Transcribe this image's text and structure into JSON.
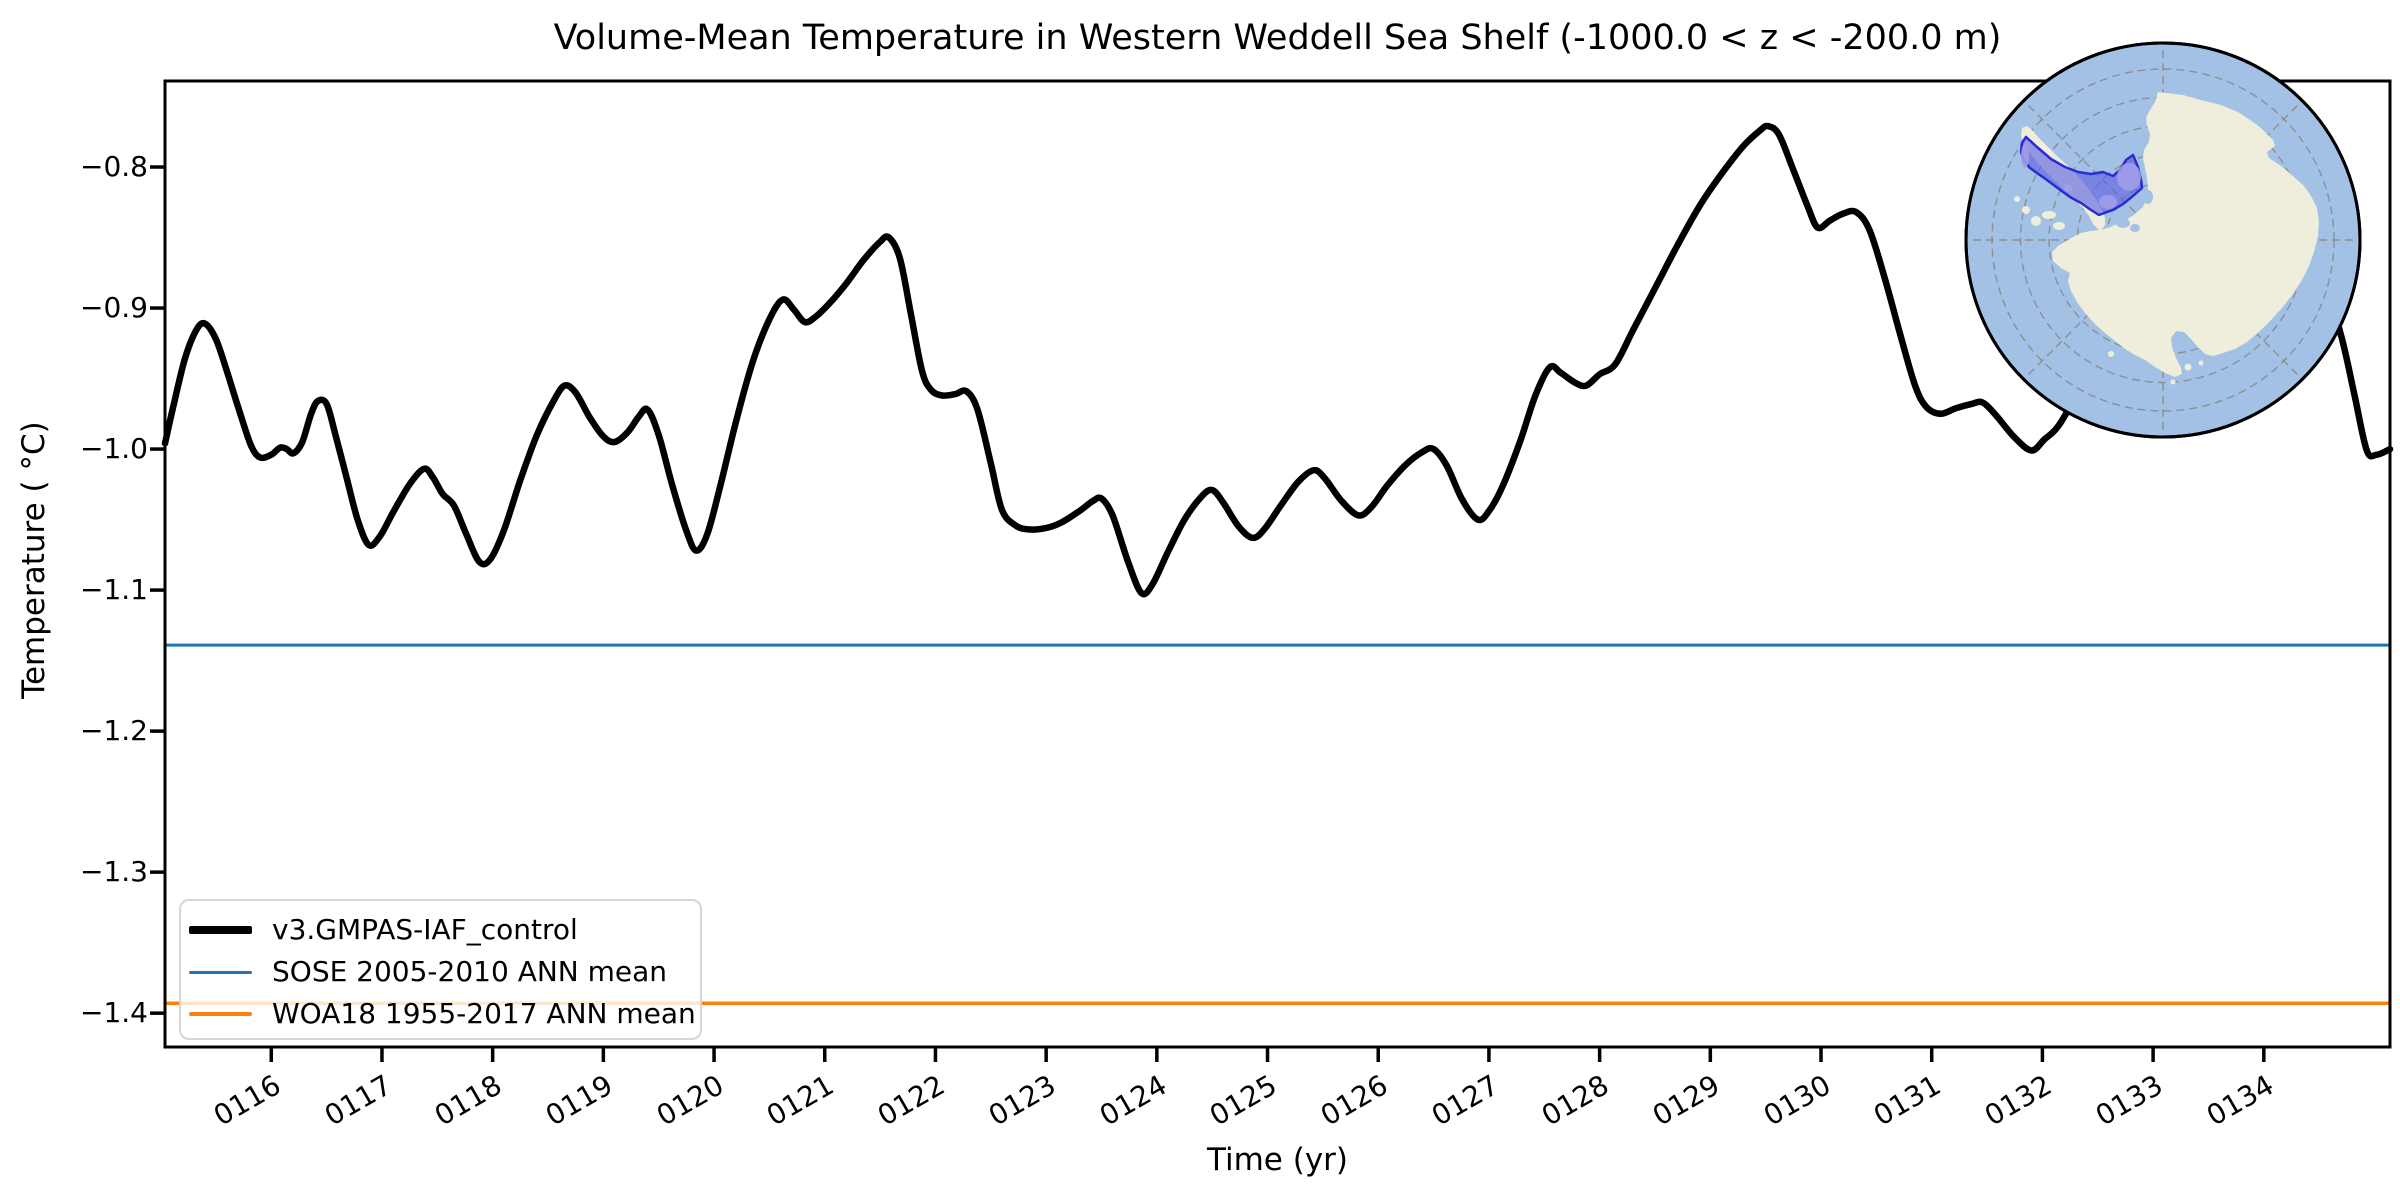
{
  "title": "Volume-Mean Temperature in Western Weddell Sea Shelf (-1000.0 < z < -200.0 m)",
  "legend": {
    "items": [
      {
        "label": "v3.GMPAS-IAF_control",
        "color": "#000000",
        "linewidth": 8
      },
      {
        "label": "SOSE 2005-2010 ANN mean",
        "color": "#1f77b4",
        "linewidth": 3
      },
      {
        "label": "WOA18 1955-2017 ANN mean",
        "color": "#ff7f0e",
        "linewidth": 4
      }
    ]
  },
  "chart_data": {
    "type": "line",
    "title": "Volume-Mean Temperature in Western Weddell Sea Shelf (-1000.0 < z < -200.0 m)",
    "xlabel": "Time (yr)",
    "ylabel": "Temperature ( °C)",
    "xlim": [
      115.04,
      135.14
    ],
    "ylim": [
      -1.424,
      -0.739
    ],
    "grid": false,
    "legend_position": "lower left",
    "x_ticks": {
      "years": [
        116,
        117,
        118,
        119,
        120,
        121,
        122,
        123,
        124,
        125,
        126,
        127,
        128,
        129,
        130,
        131,
        132,
        133,
        134
      ],
      "labels": [
        "0116",
        "0117",
        "0118",
        "0119",
        "0120",
        "0121",
        "0122",
        "0123",
        "0124",
        "0125",
        "0126",
        "0127",
        "0128",
        "0129",
        "0130",
        "0131",
        "0132",
        "0133",
        "0134"
      ],
      "rotation_deg": 30
    },
    "y_ticks": {
      "values": [
        -0.8,
        -0.9,
        -1.0,
        -1.1,
        -1.2,
        -1.3,
        -1.4
      ],
      "labels": [
        "−0.8",
        "−0.9",
        "−1.0",
        "−1.1",
        "−1.2",
        "−1.3",
        "−1.4"
      ]
    },
    "series": [
      {
        "name": "v3.GMPAS-IAF_control",
        "color": "#000000",
        "linewidth": 6.5,
        "points": [
          [
            115.04,
            -0.996
          ],
          [
            115.12,
            -0.968
          ],
          [
            115.22,
            -0.936
          ],
          [
            115.32,
            -0.916
          ],
          [
            115.4,
            -0.911
          ],
          [
            115.5,
            -0.922
          ],
          [
            115.6,
            -0.945
          ],
          [
            115.72,
            -0.975
          ],
          [
            115.82,
            -0.998
          ],
          [
            115.9,
            -1.006
          ],
          [
            116.0,
            -1.004
          ],
          [
            116.08,
            -0.999
          ],
          [
            116.14,
            -1.0
          ],
          [
            116.2,
            -1.003
          ],
          [
            116.28,
            -0.995
          ],
          [
            116.36,
            -0.975
          ],
          [
            116.42,
            -0.966
          ],
          [
            116.5,
            -0.968
          ],
          [
            116.58,
            -0.99
          ],
          [
            116.68,
            -1.02
          ],
          [
            116.78,
            -1.05
          ],
          [
            116.88,
            -1.068
          ],
          [
            116.98,
            -1.062
          ],
          [
            117.1,
            -1.045
          ],
          [
            117.25,
            -1.025
          ],
          [
            117.38,
            -1.014
          ],
          [
            117.46,
            -1.02
          ],
          [
            117.55,
            -1.032
          ],
          [
            117.65,
            -1.04
          ],
          [
            117.76,
            -1.06
          ],
          [
            117.88,
            -1.08
          ],
          [
            117.98,
            -1.078
          ],
          [
            118.1,
            -1.058
          ],
          [
            118.25,
            -1.022
          ],
          [
            118.4,
            -0.99
          ],
          [
            118.55,
            -0.966
          ],
          [
            118.65,
            -0.955
          ],
          [
            118.75,
            -0.96
          ],
          [
            118.88,
            -0.978
          ],
          [
            119.0,
            -0.991
          ],
          [
            119.1,
            -0.995
          ],
          [
            119.22,
            -0.988
          ],
          [
            119.32,
            -0.977
          ],
          [
            119.4,
            -0.972
          ],
          [
            119.5,
            -0.99
          ],
          [
            119.62,
            -1.025
          ],
          [
            119.75,
            -1.058
          ],
          [
            119.84,
            -1.072
          ],
          [
            119.94,
            -1.06
          ],
          [
            120.06,
            -1.025
          ],
          [
            120.2,
            -0.98
          ],
          [
            120.35,
            -0.938
          ],
          [
            120.5,
            -0.908
          ],
          [
            120.62,
            -0.894
          ],
          [
            120.72,
            -0.901
          ],
          [
            120.82,
            -0.91
          ],
          [
            120.92,
            -0.906
          ],
          [
            121.05,
            -0.896
          ],
          [
            121.2,
            -0.882
          ],
          [
            121.35,
            -0.866
          ],
          [
            121.5,
            -0.853
          ],
          [
            121.58,
            -0.85
          ],
          [
            121.68,
            -0.865
          ],
          [
            121.78,
            -0.905
          ],
          [
            121.88,
            -0.945
          ],
          [
            121.96,
            -0.958
          ],
          [
            122.06,
            -0.962
          ],
          [
            122.18,
            -0.961
          ],
          [
            122.28,
            -0.959
          ],
          [
            122.38,
            -0.972
          ],
          [
            122.5,
            -1.01
          ],
          [
            122.6,
            -1.043
          ],
          [
            122.72,
            -1.054
          ],
          [
            122.84,
            -1.057
          ],
          [
            123.0,
            -1.056
          ],
          [
            123.14,
            -1.052
          ],
          [
            123.3,
            -1.044
          ],
          [
            123.42,
            -1.037
          ],
          [
            123.5,
            -1.035
          ],
          [
            123.6,
            -1.047
          ],
          [
            123.74,
            -1.08
          ],
          [
            123.86,
            -1.102
          ],
          [
            123.96,
            -1.096
          ],
          [
            124.1,
            -1.073
          ],
          [
            124.25,
            -1.05
          ],
          [
            124.4,
            -1.034
          ],
          [
            124.5,
            -1.029
          ],
          [
            124.6,
            -1.038
          ],
          [
            124.74,
            -1.055
          ],
          [
            124.87,
            -1.063
          ],
          [
            124.98,
            -1.056
          ],
          [
            125.12,
            -1.04
          ],
          [
            125.28,
            -1.023
          ],
          [
            125.42,
            -1.015
          ],
          [
            125.52,
            -1.021
          ],
          [
            125.66,
            -1.036
          ],
          [
            125.82,
            -1.047
          ],
          [
            125.94,
            -1.041
          ],
          [
            126.08,
            -1.026
          ],
          [
            126.25,
            -1.011
          ],
          [
            126.4,
            -1.002
          ],
          [
            126.5,
            -1.0
          ],
          [
            126.62,
            -1.012
          ],
          [
            126.76,
            -1.036
          ],
          [
            126.9,
            -1.05
          ],
          [
            127.0,
            -1.044
          ],
          [
            127.12,
            -1.027
          ],
          [
            127.28,
            -0.995
          ],
          [
            127.42,
            -0.962
          ],
          [
            127.55,
            -0.942
          ],
          [
            127.65,
            -0.946
          ],
          [
            127.78,
            -0.953
          ],
          [
            127.88,
            -0.955
          ],
          [
            128.0,
            -0.947
          ],
          [
            128.14,
            -0.94
          ],
          [
            128.3,
            -0.916
          ],
          [
            128.5,
            -0.886
          ],
          [
            128.7,
            -0.856
          ],
          [
            128.9,
            -0.828
          ],
          [
            129.1,
            -0.805
          ],
          [
            129.3,
            -0.785
          ],
          [
            129.45,
            -0.774
          ],
          [
            129.52,
            -0.771
          ],
          [
            129.62,
            -0.777
          ],
          [
            129.75,
            -0.802
          ],
          [
            129.88,
            -0.828
          ],
          [
            129.97,
            -0.843
          ],
          [
            130.08,
            -0.838
          ],
          [
            130.2,
            -0.833
          ],
          [
            130.32,
            -0.832
          ],
          [
            130.44,
            -0.845
          ],
          [
            130.58,
            -0.88
          ],
          [
            130.72,
            -0.92
          ],
          [
            130.85,
            -0.955
          ],
          [
            130.95,
            -0.97
          ],
          [
            131.08,
            -0.975
          ],
          [
            131.22,
            -0.971
          ],
          [
            131.36,
            -0.968
          ],
          [
            131.46,
            -0.967
          ],
          [
            131.58,
            -0.976
          ],
          [
            131.74,
            -0.991
          ],
          [
            131.9,
            -1.001
          ],
          [
            132.02,
            -0.993
          ],
          [
            132.15,
            -0.983
          ],
          [
            132.35,
            -0.955
          ],
          [
            132.6,
            -0.915
          ],
          [
            132.9,
            -0.87
          ],
          [
            133.2,
            -0.838
          ],
          [
            133.5,
            -0.816
          ],
          [
            133.8,
            -0.806
          ],
          [
            134.05,
            -0.812
          ],
          [
            134.3,
            -0.838
          ],
          [
            134.52,
            -0.875
          ],
          [
            134.7,
            -0.92
          ],
          [
            134.82,
            -0.962
          ],
          [
            134.93,
            -1.001
          ],
          [
            135.02,
            -1.004
          ],
          [
            135.14,
            -1.0
          ]
        ]
      },
      {
        "name": "SOSE 2005-2010 ANN mean",
        "color": "#1f77b4",
        "linewidth": 3,
        "constant": -1.139
      },
      {
        "name": "WOA18 1955-2017 ANN mean",
        "color": "#ff7f0e",
        "linewidth": 3.5,
        "constant": -1.393
      }
    ]
  },
  "inset_map": {
    "description": "South polar stereographic locator map of Antarctica with the Western Weddell Sea shelf region highlighted",
    "ocean_color": "#a3c1e4",
    "land_color": "#efeedc",
    "region_fill": "#5c5fe0",
    "region_light": "#a49fe8",
    "region_edge": "#2a2ad8",
    "graticule_color": "#8a8a8a",
    "border_color": "#000000"
  }
}
